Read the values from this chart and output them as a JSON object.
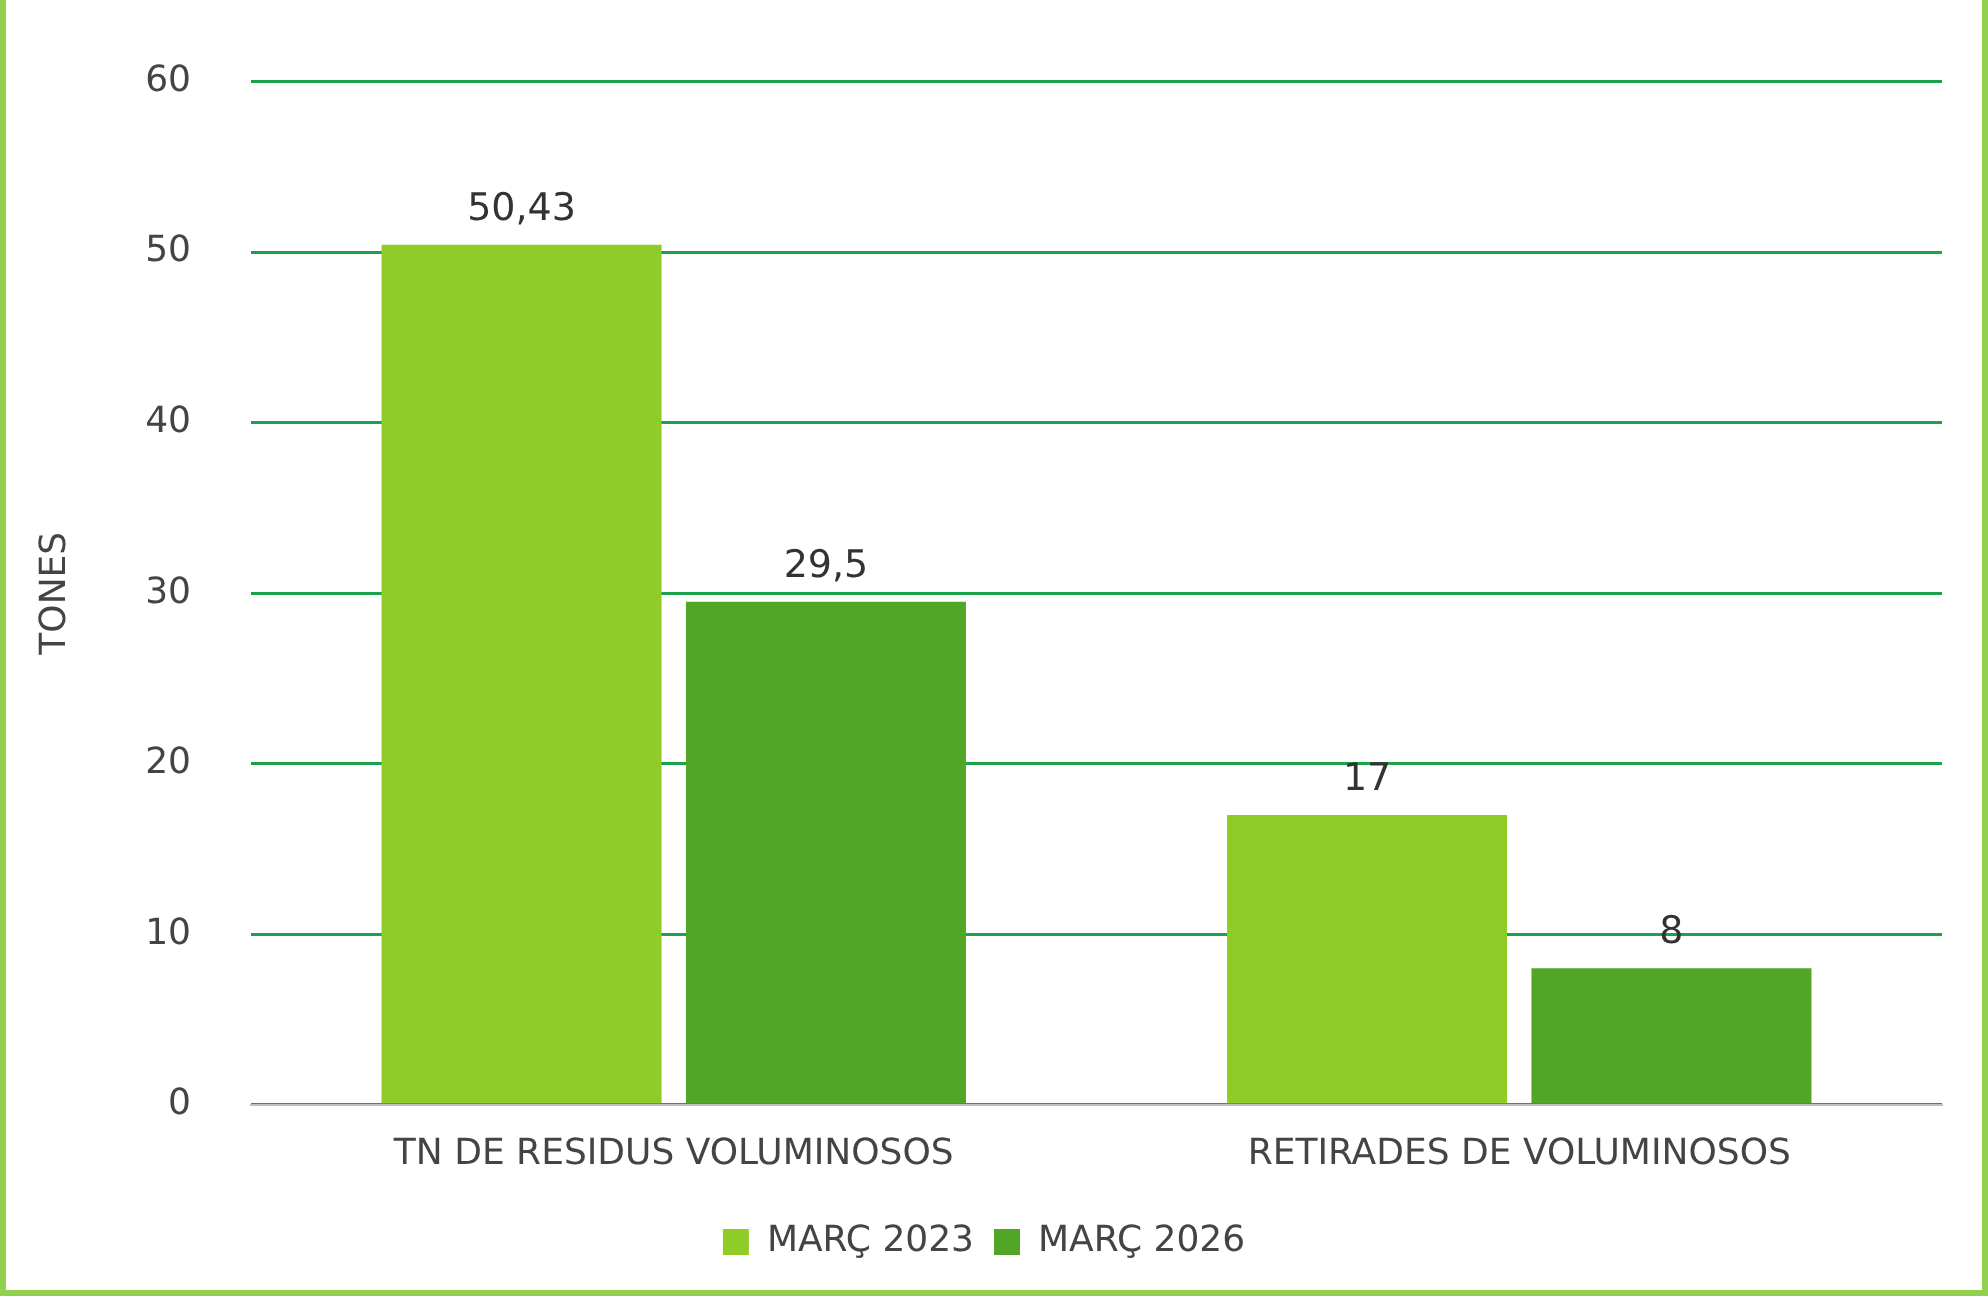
{
  "chart_data": {
    "type": "bar",
    "ylabel": "TONES",
    "categories": [
      "TN DE RESIDUS VOLUMINOSOS",
      "RETIRADES DE VOLUMINOSOS"
    ],
    "series": [
      {
        "name": "MARÇ 2023",
        "color": "#8fcc27",
        "values": [
          50.43,
          17
        ],
        "value_labels": [
          "50,43",
          "17"
        ]
      },
      {
        "name": "MARÇ 2026",
        "color": "#52a627",
        "values": [
          29.5,
          8
        ],
        "value_labels": [
          "29,5",
          "8"
        ]
      }
    ],
    "ylim": [
      0,
      60
    ],
    "yticks": [
      0,
      10,
      20,
      30,
      40,
      50,
      60
    ],
    "grid": "y",
    "legend": "bottom"
  }
}
